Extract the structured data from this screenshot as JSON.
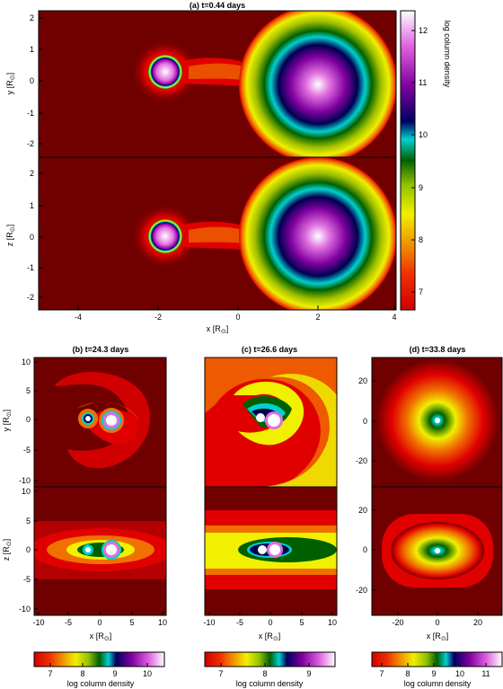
{
  "panel_a": {
    "title": "(a) t=0.44 days",
    "xlabel": "x [R",
    "ylabel_top": "y [R",
    "ylabel_bottom": "z [R",
    "label_close": "]",
    "x_ticks": [
      "-4",
      "-2",
      "0",
      "2",
      "4"
    ],
    "y_ticks": [
      "2",
      "1",
      "0",
      "-1",
      "-2"
    ],
    "colorbar_label": "log column density",
    "colorbar_ticks": [
      "12",
      "11",
      "10",
      "9",
      "8",
      "7"
    ]
  },
  "panel_b": {
    "title": "(b) t=24.3 days",
    "xlabel": "x [R",
    "ylabel_top": "y [R",
    "ylabel_bottom": "z [R",
    "label_close": "]",
    "x_ticks": [
      "-10",
      "-5",
      "0",
      "5",
      "10"
    ],
    "y_ticks_top": [
      "10",
      "5",
      "0",
      "-5",
      "-10"
    ],
    "y_ticks_bottom": [
      "10",
      "5",
      "0",
      "-5",
      "-10"
    ],
    "colorbar_label": "log column density",
    "colorbar_ticks": [
      "7",
      "8",
      "9",
      "10"
    ]
  },
  "panel_c": {
    "title": "(c) t=26.6 days",
    "xlabel": "x [R",
    "label_close": "]",
    "x_ticks": [
      "-10",
      "-5",
      "0",
      "5",
      "10"
    ],
    "colorbar_label": "log column density",
    "colorbar_ticks": [
      "7",
      "8",
      "9"
    ]
  },
  "panel_d": {
    "title": "(d) t=33.8 days",
    "xlabel": "x [R",
    "label_close": "]",
    "x_ticks": [
      "-20",
      "0",
      "20"
    ],
    "y_ticks_top": [
      "20",
      "0",
      "-20"
    ],
    "y_ticks_bottom": [
      "20",
      "0",
      "-20"
    ],
    "colorbar_label": "log column density",
    "colorbar_ticks": [
      "7",
      "8",
      "9",
      "10",
      "11"
    ]
  },
  "colors": {
    "background": "#700000",
    "red": "#e00000",
    "orange": "#f07000",
    "yellow": "#f0f000",
    "green": "#007000",
    "cyan": "#00d0d0",
    "navy": "#000050",
    "purple": "#a000b0",
    "white": "#ffffff"
  }
}
